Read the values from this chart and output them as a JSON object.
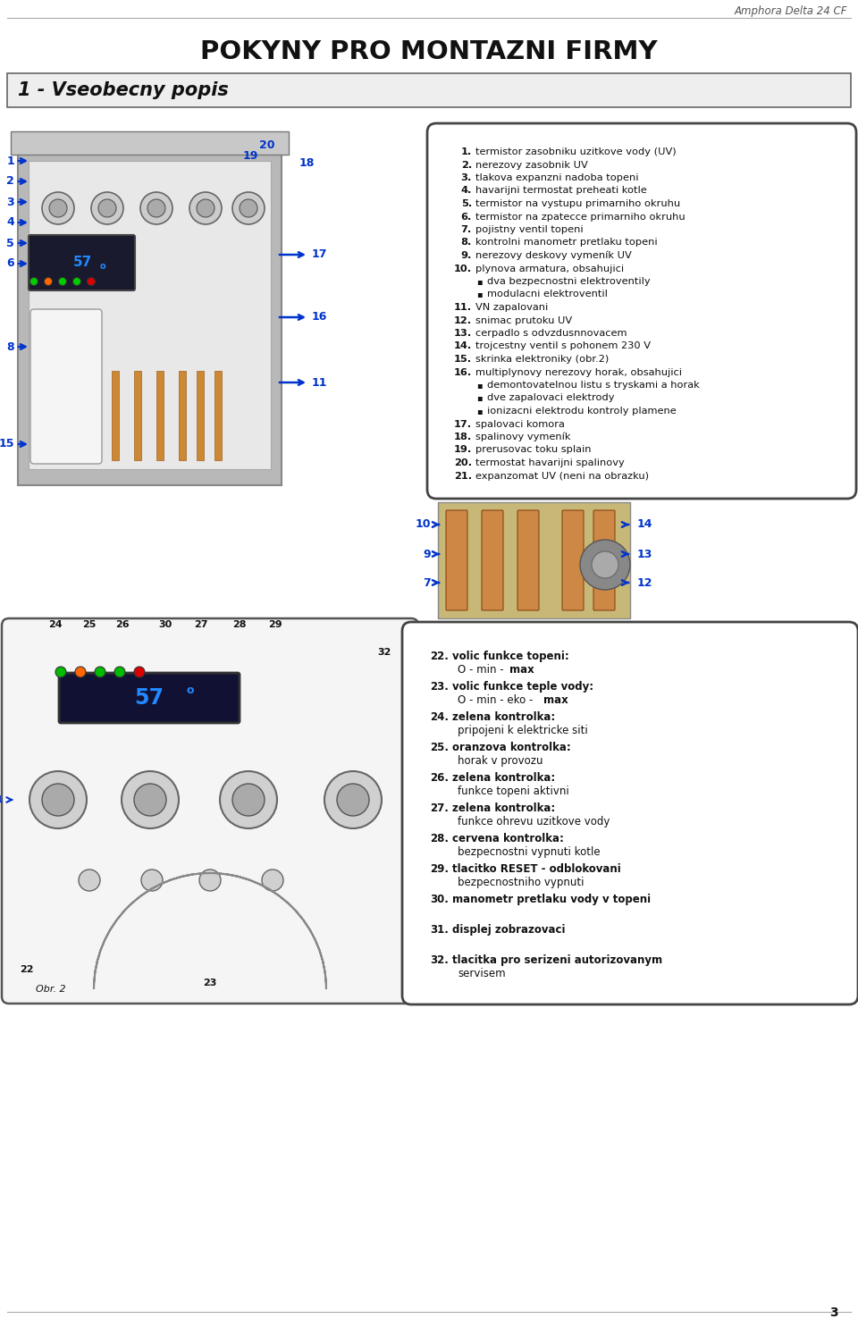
{
  "page_title": "POKYNY PRO MONTAZNI FIRMY",
  "header_text": "Amphora Delta 24 CF",
  "section_title": "1 - Vseobecny popis",
  "page_number": "3",
  "bg_color": "#ffffff",
  "blue": "#0033cc",
  "black": "#111111",
  "box_items_1": [
    {
      "num": 1,
      "text": "termistor zasobniku uzitkove vody (UV)",
      "sub": false
    },
    {
      "num": 2,
      "text": "nerezovy zasobnik UV",
      "sub": false
    },
    {
      "num": 3,
      "text": "tlakova expanzni nadoba topeni",
      "sub": false
    },
    {
      "num": 4,
      "text": "havarijni termostat preheati kotle",
      "sub": false
    },
    {
      "num": 5,
      "text": "termistor na vystupu primarniho okruhu",
      "sub": false
    },
    {
      "num": 6,
      "text": "termistor na zpatecce primarniho okruhu",
      "sub": false
    },
    {
      "num": 7,
      "text": "pojistny ventil topeni",
      "sub": false
    },
    {
      "num": 8,
      "text": "kontrolni manometr pretlaku topeni",
      "sub": false
    },
    {
      "num": 9,
      "text": "nerezovy deskovy vymeník UV",
      "sub": false
    },
    {
      "num": 10,
      "text": "plynova armatura, obsahujici",
      "sub": false
    },
    {
      "num": -1,
      "text": "dva bezpecnostni elektroventily",
      "sub": true
    },
    {
      "num": -1,
      "text": "modulacni elektroventil",
      "sub": true
    },
    {
      "num": 11,
      "text": "VN zapalovani",
      "sub": false
    },
    {
      "num": 12,
      "text": "snimac prutoku UV",
      "sub": false
    },
    {
      "num": 13,
      "text": "cerpadlo s odvzdusnnovacem",
      "sub": false
    },
    {
      "num": 14,
      "text": "trojcestny ventil s pohonem 230 V",
      "sub": false
    },
    {
      "num": 15,
      "text": "skrinka elektroniky (obr.2)",
      "sub": false
    },
    {
      "num": 16,
      "text": "multiplynovy nerezovy horak, obsahujici",
      "sub": false
    },
    {
      "num": -1,
      "text": "demontovatelnou listu s tryskami a horak",
      "sub": true
    },
    {
      "num": -1,
      "text": "dve zapalovaci elektrody",
      "sub": true
    },
    {
      "num": -1,
      "text": "ionizacni elektrodu kontroly plamene",
      "sub": true
    },
    {
      "num": 17,
      "text": "spalovaci komora",
      "sub": false
    },
    {
      "num": 18,
      "text": "spalinovy vymeník",
      "sub": false
    },
    {
      "num": 19,
      "text": "prerusovac toku splain",
      "sub": false
    },
    {
      "num": 20,
      "text": "termostat havarijni spalinovy",
      "sub": false
    },
    {
      "num": 21,
      "text": "expanzomat UV (neni na obrazku)",
      "sub": false
    }
  ],
  "box_items_2_nums": [
    "22.",
    "23.",
    "24.",
    "25.",
    "26.",
    "27.",
    "28.",
    "29.",
    "30.",
    "31.",
    "32."
  ],
  "box_items_2_labels": [
    "volic funkce topeni:",
    "volic funkce teple vody:",
    "zelena kontrolka:",
    "oranzova kontrolka:",
    "zelena kontrolka:",
    "zelena kontrolka:",
    "cervena kontrolka:",
    "tlacitko RESET - odblokovani",
    "manometr pretlaku vody v topeni",
    "displej zobrazovaci",
    "tlacitka pro serizeni autorizovanym"
  ],
  "box_items_2_details": [
    "O - min - MAX",
    "O - min - eko - MAX",
    "pripojeni k elektricke siti",
    "horak v provozu",
    "funkce topeni aktivni",
    "funkce ohrevu uzitkove vody",
    "bezpecnostni vypnuti kotle",
    "bezpecnostniho vypnuti",
    "",
    "",
    "servisem"
  ]
}
